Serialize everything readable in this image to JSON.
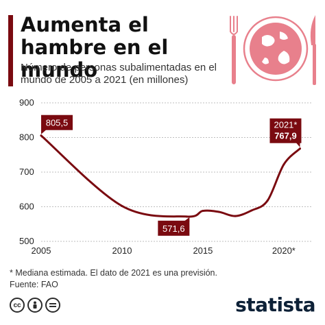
{
  "header": {
    "title": "Aumenta el hambre en el mundo",
    "subtitle": "Número de personas subalimentadas en el mundo de 2005 a 2021 (en millones)"
  },
  "chart_data": {
    "type": "line",
    "x": [
      2005,
      2010,
      2014,
      2015,
      2016,
      2017,
      2018,
      2019,
      2020,
      2021
    ],
    "series": [
      {
        "values": [
          805.5,
          602,
          571.6,
          588,
          585,
          573,
          589,
          618,
          722,
          767.9
        ]
      }
    ],
    "x_ticks": [
      2005,
      2010,
      2015,
      2020
    ],
    "x_tick_labels": [
      "2005",
      "2010",
      "2015",
      "2020*"
    ],
    "y_ticks": [
      500,
      600,
      700,
      800,
      900
    ],
    "ylim": [
      500,
      900
    ],
    "grid": true,
    "annotations": [
      {
        "x": 2005,
        "y": 805.5,
        "label": "805,5"
      },
      {
        "x": 2014,
        "y": 571.6,
        "label": "571,6"
      },
      {
        "x": 2021,
        "y": 767.9,
        "label_line1": "2021*",
        "label_line2": "767,9"
      }
    ],
    "colors": {
      "line": "#7a0a10",
      "grid": "#bdbdbd",
      "callout": "#7a0a10"
    }
  },
  "footer": {
    "note": "* Mediana estimada. El dato de 2021 es una previsión.",
    "source": "Fuente: FAO",
    "license_icons": [
      "cc",
      "person",
      "equals"
    ],
    "brand": "statista"
  },
  "illustration": {
    "icons": [
      "fork-icon",
      "globe-plate-icon",
      "knife-icon"
    ],
    "color": "#e8808c"
  }
}
